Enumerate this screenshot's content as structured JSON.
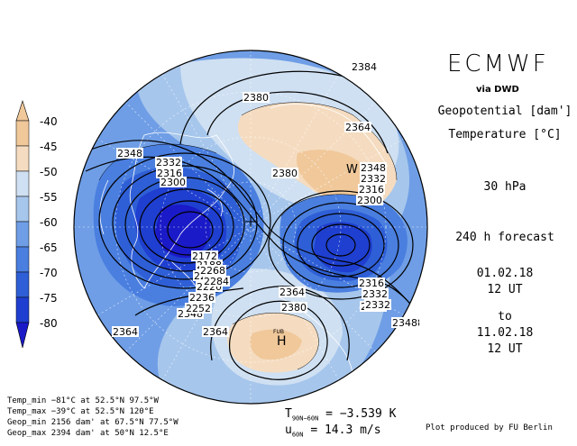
{
  "header": {
    "title": "ECMWF",
    "source": "via DWD",
    "field1": "Geopotential [dam']",
    "field2": "Temperature [°C]",
    "level": "30 hPa",
    "forecast": "240 h forecast",
    "init_date": "01.02.18",
    "init_time": "12 UT",
    "to": "to",
    "valid_date": "11.02.18",
    "valid_time": "12 UT"
  },
  "colorbar": {
    "labels": [
      "-40",
      "-45",
      "-50",
      "-55",
      "-60",
      "-65",
      "-70",
      "-75",
      "-80"
    ],
    "colors": [
      "#f0c89a",
      "#f5dcc0",
      "#cfe0f2",
      "#a6c6ec",
      "#6f9ee6",
      "#4a7fe0",
      "#2f5fd6",
      "#1f3fd0",
      "#1a1ac8"
    ]
  },
  "stats": {
    "temp_min": "Temp_min −81°C at 52.5°N 97.5°W",
    "temp_max": "Temp_max −39°C at 52.5°N 120°E",
    "geop_min": "Geop_min 2156 dam' at 67.5°N 77.5°W",
    "geop_max": "Geop_max 2394 dam' at 50°N 12.5°E"
  },
  "bottom": {
    "t_label": "T",
    "t_sub": "90N−60N",
    "t_value": "= −3.539 K",
    "u_label": "u",
    "u_sub": "60N",
    "u_value": "= 14.3 m/s",
    "credit": "Plot produced by FU Berlin"
  },
  "map": {
    "contour_labels": [
      "2384",
      "2380",
      "2364",
      "2348",
      "2332",
      "2316",
      "2300",
      "2380",
      "2348",
      "2332",
      "2316",
      "2300",
      "2364",
      "2380",
      "2348",
      "2332",
      "2316",
      "2364",
      "2348",
      "2172",
      "2188",
      "2204",
      "2220",
      "2236",
      "2268",
      "2284",
      "2252",
      "2316",
      "2332",
      "2348",
      "2364"
    ],
    "high_label": "H",
    "high_sub": "FUB",
    "w_label": "W"
  }
}
